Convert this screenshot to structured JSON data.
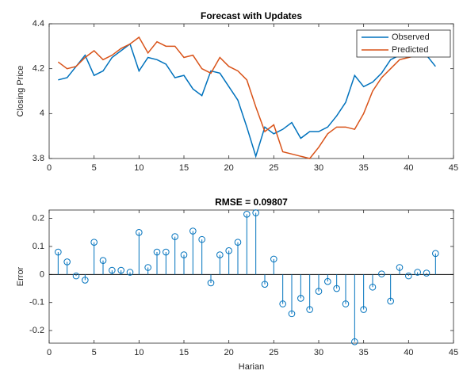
{
  "chart_data": [
    {
      "type": "line",
      "title": "Forecast with Updates",
      "y_label": "Closing Price",
      "x": [
        1,
        2,
        3,
        4,
        5,
        6,
        7,
        8,
        9,
        10,
        11,
        12,
        13,
        14,
        15,
        16,
        17,
        18,
        19,
        20,
        21,
        22,
        23,
        24,
        25,
        26,
        27,
        28,
        29,
        30,
        31,
        32,
        33,
        34,
        35,
        36,
        37,
        38,
        39,
        40,
        41,
        42,
        43
      ],
      "series": [
        {
          "name": "Observed",
          "color": "#0072bd",
          "values": [
            4.15,
            4.16,
            4.21,
            4.26,
            4.17,
            4.19,
            4.25,
            4.28,
            4.31,
            4.19,
            4.25,
            4.24,
            4.22,
            4.16,
            4.17,
            4.11,
            4.08,
            4.19,
            4.18,
            4.12,
            4.06,
            3.94,
            3.81,
            3.94,
            3.91,
            3.93,
            3.96,
            3.89,
            3.92,
            3.92,
            3.94,
            3.99,
            4.05,
            4.17,
            4.12,
            4.14,
            4.18,
            4.24,
            4.26,
            4.28,
            4.27,
            4.26,
            4.21
          ]
        },
        {
          "name": "Predicted",
          "color": "#d95319",
          "values": [
            4.23,
            4.2,
            4.21,
            4.25,
            4.28,
            4.24,
            4.26,
            4.29,
            4.31,
            4.34,
            4.27,
            4.32,
            4.3,
            4.3,
            4.25,
            4.26,
            4.2,
            4.18,
            4.25,
            4.21,
            4.19,
            4.15,
            4.03,
            3.92,
            3.95,
            3.83,
            3.82,
            3.81,
            3.8,
            3.85,
            3.91,
            3.94,
            3.94,
            3.93,
            4.0,
            4.1,
            4.16,
            4.2,
            4.24,
            4.25,
            4.26,
            4.27,
            4.27
          ]
        }
      ],
      "xlim": [
        0,
        45
      ],
      "xticks": [
        0,
        5,
        10,
        15,
        20,
        25,
        30,
        35,
        40,
        45
      ],
      "ylim": [
        3.8,
        4.4
      ],
      "yticks": [
        3.8,
        4,
        4.2,
        4.4
      ],
      "legend": "northeast"
    },
    {
      "type": "stem",
      "title": "RMSE = 0.09807",
      "x_label": "Harian",
      "y_label": "Error",
      "color": "#0072bd",
      "x": [
        1,
        2,
        3,
        4,
        5,
        6,
        7,
        8,
        9,
        10,
        11,
        12,
        13,
        14,
        15,
        16,
        17,
        18,
        19,
        20,
        21,
        22,
        23,
        24,
        25,
        26,
        27,
        28,
        29,
        30,
        31,
        32,
        33,
        34,
        35,
        36,
        37,
        38,
        39,
        40,
        41,
        42,
        43
      ],
      "values": [
        0.08,
        0.045,
        -0.005,
        -0.02,
        0.115,
        0.05,
        0.015,
        0.015,
        0.008,
        0.15,
        0.025,
        0.08,
        0.08,
        0.135,
        0.07,
        0.155,
        0.125,
        -0.03,
        0.07,
        0.085,
        0.115,
        0.215,
        0.22,
        -0.035,
        0.055,
        -0.105,
        -0.14,
        -0.085,
        -0.125,
        -0.06,
        -0.025,
        -0.05,
        -0.105,
        -0.24,
        -0.125,
        -0.045,
        0.002,
        -0.095,
        0.025,
        -0.005,
        0.008,
        0.005,
        0.075
      ],
      "xlim": [
        0,
        45
      ],
      "xticks": [
        0,
        5,
        10,
        15,
        20,
        25,
        30,
        35,
        40,
        45
      ],
      "ylim": [
        -0.245,
        0.23
      ],
      "yticks": [
        -0.2,
        -0.1,
        0,
        0.1,
        0.2
      ]
    }
  ]
}
